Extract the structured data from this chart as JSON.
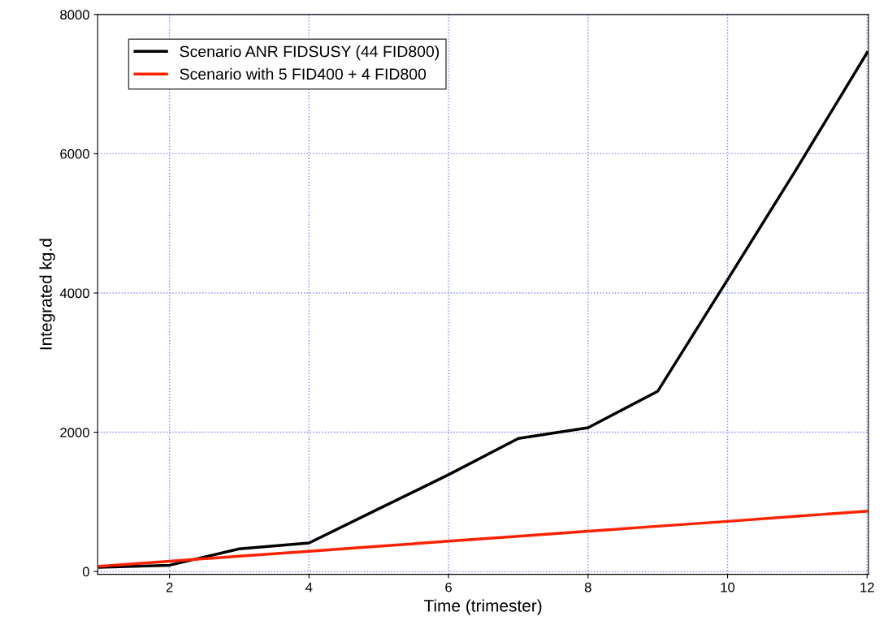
{
  "chart_data": {
    "type": "line",
    "xlabel": "Time (trimester)",
    "ylabel": "Integrated kg.d",
    "x": [
      1,
      2,
      3,
      4,
      5,
      6,
      7,
      8,
      9,
      10,
      11,
      12
    ],
    "series": [
      {
        "name": "Scenario ANR FIDSUSY (44 FID800)",
        "color": "#000000",
        "values": [
          60,
          90,
          325,
          410,
          900,
          1390,
          1910,
          2065,
          2590,
          4190,
          5800,
          7450
        ]
      },
      {
        "name": "Scenario with 5 FID400 + 4 FID800",
        "color": "#ff2200",
        "values": [
          75,
          148,
          220,
          290,
          362,
          435,
          505,
          578,
          650,
          720,
          795,
          865
        ]
      }
    ],
    "xlim": [
      0.97,
      12.02
    ],
    "ylim": [
      -40,
      8000
    ],
    "xticks": [
      2,
      4,
      6,
      8,
      10,
      12
    ],
    "yticks": [
      0,
      2000,
      4000,
      6000,
      8000
    ],
    "grid": true,
    "legend": "top left",
    "marker": "none",
    "line_style": "solid"
  }
}
